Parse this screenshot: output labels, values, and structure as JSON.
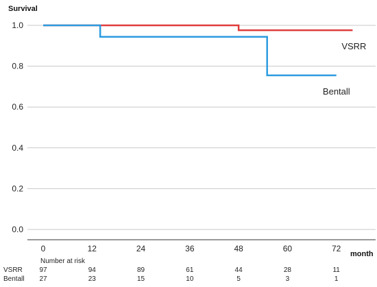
{
  "chart_data": {
    "type": "line",
    "step": true,
    "ylabel": "Survival",
    "xlabel": "month",
    "ylim": [
      0,
      1
    ],
    "yticks": [
      "0.0",
      "0.2",
      "0.4",
      "0.6",
      "0.8",
      "1.0"
    ],
    "xlim": [
      0,
      76
    ],
    "xticks": [
      "0",
      "12",
      "24",
      "36",
      "48",
      "60",
      "72"
    ],
    "grid": "horizontal",
    "series": [
      {
        "name": "VSRR",
        "color": "#e03c3c",
        "points": [
          [
            0,
            1.0
          ],
          [
            48,
            1.0
          ],
          [
            48,
            0.976
          ],
          [
            76,
            0.976
          ]
        ]
      },
      {
        "name": "Bentall",
        "color": "#2b9be0",
        "points": [
          [
            0,
            1.0
          ],
          [
            14,
            1.0
          ],
          [
            14,
            0.944
          ],
          [
            55,
            0.944
          ],
          [
            55,
            0.755
          ],
          [
            72,
            0.755
          ]
        ]
      }
    ],
    "risk_table": {
      "title": "Number at risk",
      "rows": [
        {
          "name": "VSRR",
          "values": [
            "97",
            "94",
            "89",
            "61",
            "44",
            "28",
            "11"
          ]
        },
        {
          "name": "Bentall",
          "values": [
            "27",
            "23",
            "15",
            "10",
            "5",
            "3",
            "1"
          ]
        }
      ]
    }
  }
}
